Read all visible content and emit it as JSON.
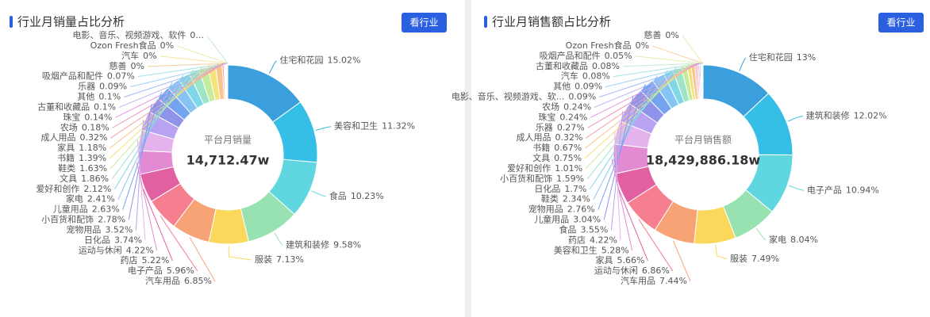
{
  "chart_data": [
    {
      "type": "pie",
      "title": "行业月销量占比分析",
      "action_label": "看行业",
      "center_label": "平台月销量",
      "center_value": "14,712.47w",
      "categories": [
        "住宅和花园",
        "美容和卫生",
        "食品",
        "建筑和装修",
        "服装",
        "汽车用品",
        "电子产品",
        "药店",
        "运动与休闲",
        "日化品",
        "宠物用品",
        "小百货和配饰",
        "儿童用品",
        "家电",
        "爱好和创作",
        "文具",
        "鞋类",
        "书籍",
        "家具",
        "成人用品",
        "农场",
        "珠宝",
        "古董和收藏品",
        "其他",
        "乐器",
        "吸烟产品和配件",
        "电影、音乐、视频游戏、软件",
        "Ozon Fresh食品",
        "汽车",
        "慈善"
      ],
      "values": [
        15.02,
        11.32,
        10.23,
        9.58,
        7.13,
        6.85,
        5.96,
        5.22,
        4.22,
        3.74,
        3.52,
        2.78,
        2.63,
        2.41,
        2.12,
        1.86,
        1.63,
        1.39,
        1.18,
        0.32,
        0.18,
        0.14,
        0.1,
        0.1,
        0.09,
        0.07,
        0,
        0,
        0,
        0
      ],
      "value_labels": [
        "15.02%",
        "11.32%",
        "10.23%",
        "9.58%",
        "7.13%",
        "6.85%",
        "5.96%",
        "5.22%",
        "4.22%",
        "3.74%",
        "3.52%",
        "2.78%",
        "2.63%",
        "2.41%",
        "2.12%",
        "1.86%",
        "1.63%",
        "1.39%",
        "1.18%",
        "0.32%",
        "0.18%",
        "0.14%",
        "0.1%",
        "0.1%",
        "0.09%",
        "0.07%",
        "0...",
        "0%",
        "0%",
        "0%"
      ],
      "colors": [
        "#3a9fdc",
        "#35bfe6",
        "#5fd6e0",
        "#98e2b2",
        "#fbd85b",
        "#f8a375",
        "#f57f8e",
        "#e060a2",
        "#e38bd2",
        "#e4b3ee",
        "#b7a3f2",
        "#8f93ea",
        "#74a4f0",
        "#86c4f4",
        "#7fd7e8",
        "#9ee5c8",
        "#c6eb9b",
        "#f4e27a",
        "#f8c48c",
        "#f5a3a3",
        "#ee8fbf",
        "#d99be2",
        "#bfb1f0",
        "#a2b8f2",
        "#9fd0f4",
        "#a5e2e6",
        "#bfeacd",
        "#dfeeb0",
        "#f4e7a3",
        "#f6cfa8"
      ]
    },
    {
      "type": "pie",
      "title": "行业月销售额占比分析",
      "action_label": "看行业",
      "center_label": "平台月销售额",
      "center_value": "18,429,886.18w",
      "categories": [
        "住宅和花园",
        "建筑和装修",
        "电子产品",
        "家电",
        "服装",
        "汽车用品",
        "运动与休闲",
        "家具",
        "美容和卫生",
        "药店",
        "食品",
        "儿童用品",
        "宠物用品",
        "鞋类",
        "日化品",
        "小百货和配饰",
        "爱好和创作",
        "文具",
        "书籍",
        "成人用品",
        "乐器",
        "珠宝",
        "农场",
        "电影、音乐、视频游戏、软...",
        "其他",
        "汽车",
        "古董和收藏品",
        "吸烟产品和配件",
        "慈善",
        "Ozon Fresh食品"
      ],
      "values": [
        13,
        12.02,
        10.94,
        8.04,
        7.49,
        7.44,
        6.86,
        5.66,
        5.28,
        4.22,
        3.55,
        3.04,
        2.76,
        2.34,
        1.7,
        1.59,
        1.01,
        0.75,
        0.67,
        0.32,
        0.27,
        0.24,
        0.24,
        0.09,
        0.09,
        0.08,
        0.08,
        0.05,
        0,
        0
      ],
      "value_labels": [
        "13%",
        "12.02%",
        "10.94%",
        "8.04%",
        "7.49%",
        "7.44%",
        "6.86%",
        "5.66%",
        "5.28%",
        "4.22%",
        "3.55%",
        "3.04%",
        "2.76%",
        "2.34%",
        "1.7%",
        "1.59%",
        "1.01%",
        "0.75%",
        "0.67%",
        "0.32%",
        "0.27%",
        "0.24%",
        "0.24%",
        "0.09%",
        "0.09%",
        "0.08%",
        "0.08%",
        "0.05%",
        "0%",
        "0%"
      ],
      "colors": [
        "#3a9fdc",
        "#35bfe6",
        "#5fd6e0",
        "#98e2b2",
        "#fbd85b",
        "#f8a375",
        "#f57f8e",
        "#e060a2",
        "#e38bd2",
        "#e4b3ee",
        "#b7a3f2",
        "#8f93ea",
        "#74a4f0",
        "#86c4f4",
        "#7fd7e8",
        "#9ee5c8",
        "#c6eb9b",
        "#f4e27a",
        "#f8c48c",
        "#f5a3a3",
        "#ee8fbf",
        "#d99be2",
        "#bfb1f0",
        "#a2b8f2",
        "#9fd0f4",
        "#a5e2e6",
        "#bfeacd",
        "#dfeeb0",
        "#f4e7a3",
        "#f6cfa8"
      ]
    }
  ]
}
